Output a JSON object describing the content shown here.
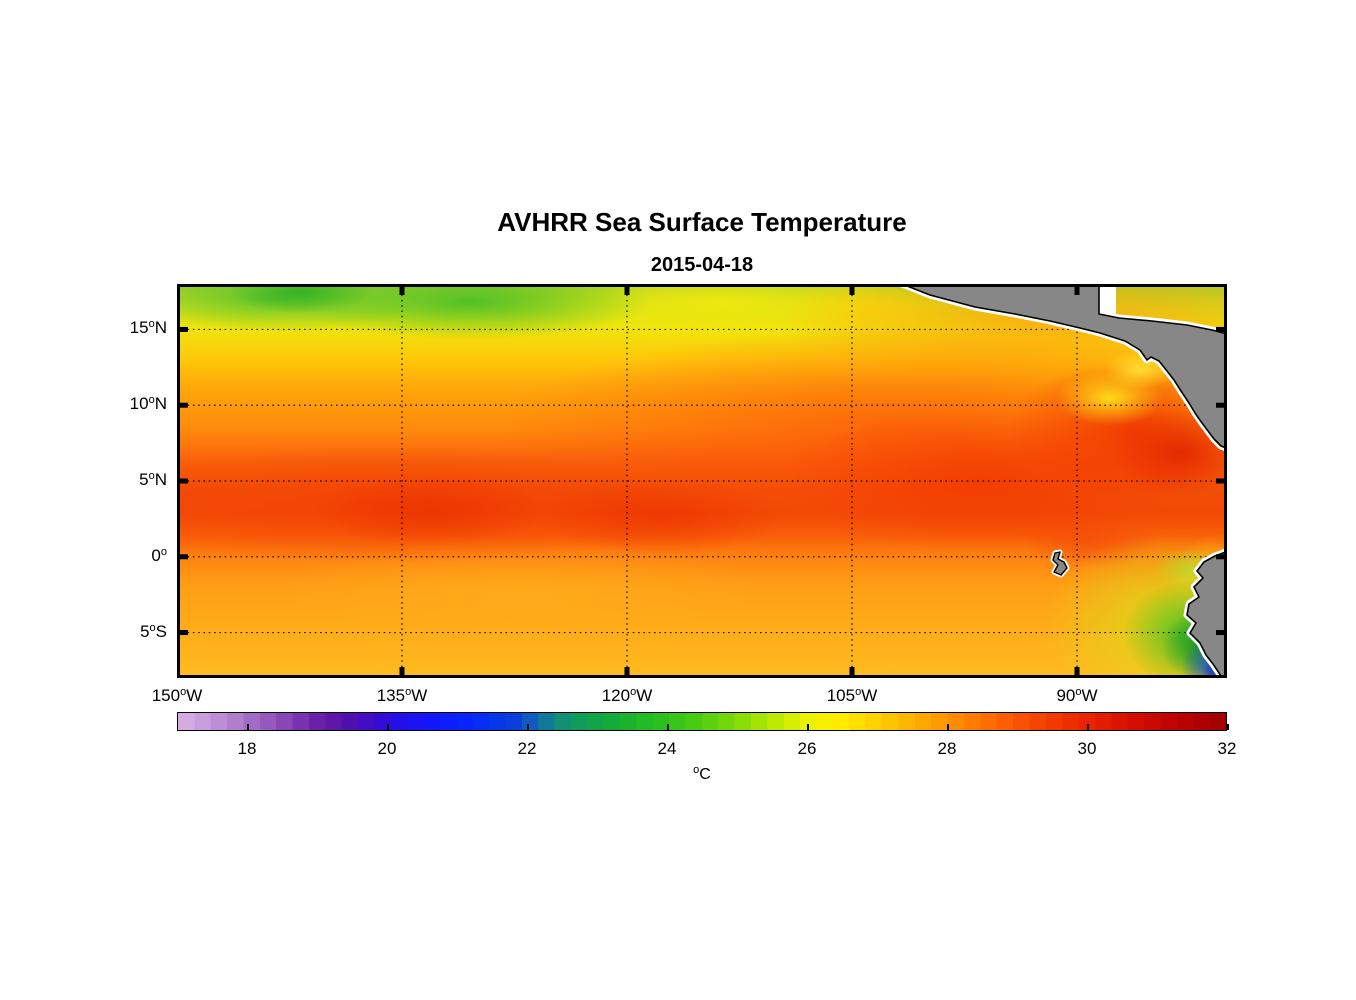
{
  "figure": {
    "title": "AVHRR Sea Surface Temperature",
    "subtitle": "2015-04-18",
    "background_color": "#ffffff",
    "land_color": "#878787",
    "coast_outline_color": "#000000",
    "coast_halo_color": "#ffffff"
  },
  "chart_data": {
    "type": "heatmap",
    "title": "AVHRR Sea Surface Temperature",
    "subtitle": "2015-04-18",
    "grid": "dotted graticule on",
    "map": {
      "lon_range_deg_west": [
        150,
        80
      ],
      "lat_range_deg": [
        18,
        -8
      ],
      "lon_ticks": [
        {
          "deg_west": 150,
          "pre": "150",
          "sup": "o",
          "post": "W"
        },
        {
          "deg_west": 135,
          "pre": "135",
          "sup": "o",
          "post": "W"
        },
        {
          "deg_west": 120,
          "pre": "120",
          "sup": "o",
          "post": "W"
        },
        {
          "deg_west": 105,
          "pre": "105",
          "sup": "o",
          "post": "W"
        },
        {
          "deg_west": 90,
          "pre": "90",
          "sup": "o",
          "post": "W"
        }
      ],
      "lat_ticks": [
        {
          "deg": 15,
          "pre": "15",
          "sup": "o",
          "post": "N"
        },
        {
          "deg": 10,
          "pre": "10",
          "sup": "o",
          "post": "N"
        },
        {
          "deg": 5,
          "pre": "5",
          "sup": "o",
          "post": "N"
        },
        {
          "deg": 0,
          "pre": "0",
          "sup": "o",
          "post": ""
        },
        {
          "deg": -5,
          "pre": "5",
          "sup": "o",
          "post": "S"
        }
      ],
      "land_regions": [
        "Mexico and Central America",
        "Galapagos Islands",
        "South America (Ecuador / Peru coast)"
      ]
    },
    "colorbar": {
      "min": 17,
      "max": 32,
      "segments": 64,
      "units_sup": "o",
      "units_text": "C",
      "tick_values": [
        18,
        20,
        22,
        24,
        26,
        28,
        30,
        32
      ],
      "colormap_anchors": [
        [
          17.0,
          "#D9B3E6"
        ],
        [
          17.4,
          "#C79BDB"
        ],
        [
          17.8,
          "#B27FCE"
        ],
        [
          18.2,
          "#9C5FC2"
        ],
        [
          18.6,
          "#8440B5"
        ],
        [
          19.0,
          "#6A1FA8"
        ],
        [
          19.4,
          "#5410A8"
        ],
        [
          19.8,
          "#3C0ACF"
        ],
        [
          20.2,
          "#2310EC"
        ],
        [
          20.6,
          "#1216FA"
        ],
        [
          21.0,
          "#0A20FF"
        ],
        [
          21.4,
          "#0730F2"
        ],
        [
          21.8,
          "#0A3EDC"
        ],
        [
          22.1,
          "#1063B8"
        ],
        [
          22.4,
          "#128A80"
        ],
        [
          22.8,
          "#10A054"
        ],
        [
          23.2,
          "#14AC38"
        ],
        [
          23.6,
          "#1FB827"
        ],
        [
          24.0,
          "#2EC21C"
        ],
        [
          24.4,
          "#48CC12"
        ],
        [
          24.8,
          "#6CD60C"
        ],
        [
          25.2,
          "#98E006"
        ],
        [
          25.6,
          "#C4EA02"
        ],
        [
          26.0,
          "#EAF200"
        ],
        [
          26.4,
          "#FFEE00"
        ],
        [
          26.8,
          "#FFDC00"
        ],
        [
          27.2,
          "#FFC400"
        ],
        [
          27.6,
          "#FFAC00"
        ],
        [
          28.0,
          "#FF9400"
        ],
        [
          28.4,
          "#FF7A00"
        ],
        [
          28.8,
          "#FD6000"
        ],
        [
          29.2,
          "#F84A00"
        ],
        [
          29.6,
          "#F23600"
        ],
        [
          30.0,
          "#EA2400"
        ],
        [
          30.4,
          "#DE1600"
        ],
        [
          30.8,
          "#D00C00"
        ],
        [
          31.2,
          "#C00400"
        ],
        [
          31.6,
          "#B00000"
        ],
        [
          32.0,
          "#A00000"
        ]
      ]
    },
    "sst_grid": {
      "note": "approximate SST (degC) read from colors; null = land / off map",
      "lons_deg_west": [
        150,
        140,
        130,
        120,
        110,
        100,
        90,
        80
      ],
      "lats_deg": [
        18,
        15,
        10,
        5,
        0,
        -5,
        -8
      ],
      "values_degC": [
        [
          23.5,
          23.0,
          23.5,
          24.5,
          26.0,
          null,
          null,
          27.5
        ],
        [
          24.5,
          25.0,
          25.0,
          26.0,
          27.5,
          28.0,
          null,
          27.5
        ],
        [
          26.5,
          27.0,
          27.0,
          27.5,
          28.5,
          29.0,
          29.5,
          null
        ],
        [
          28.0,
          28.5,
          28.5,
          28.5,
          29.0,
          29.5,
          30.0,
          29.0
        ],
        [
          27.5,
          27.5,
          27.5,
          28.0,
          28.0,
          28.0,
          27.5,
          26.0
        ],
        [
          27.5,
          27.5,
          27.5,
          27.5,
          27.5,
          28.0,
          27.5,
          23.0
        ],
        [
          27.5,
          27.5,
          27.5,
          27.5,
          27.5,
          27.5,
          27.0,
          21.0
        ]
      ]
    },
    "annotations": [
      "cool green band along northern edge west of 125W (~23-24C)",
      "warm red band between 3N and 8N (~29-30C)",
      "warmest water near Central American coast (~30C)",
      "wind-jet cool yellow patch in Gulf of Papagayo (~26C)",
      "cold coastal upwelling off Peru/Ecuador (green-blue, ~18-23C)"
    ]
  }
}
